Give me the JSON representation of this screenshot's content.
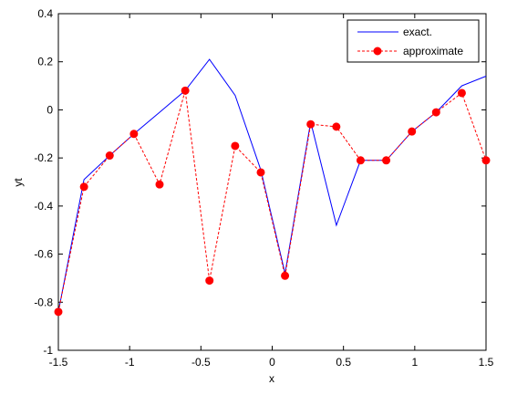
{
  "chart_data": {
    "type": "line",
    "xlabel": "x",
    "ylabel": "yt",
    "xlim": [
      -1.5,
      1.5
    ],
    "ylim": [
      -1,
      0.4
    ],
    "xticks": [
      -1.5,
      -1,
      -0.5,
      0,
      0.5,
      1,
      1.5
    ],
    "xtick_labels": [
      "-1.5",
      "-1",
      "-0.5",
      "0",
      "0.5",
      "1",
      "1.5"
    ],
    "yticks": [
      -1,
      -0.8,
      -0.6,
      -0.4,
      -0.2,
      0,
      0.2,
      0.4
    ],
    "ytick_labels": [
      "-1",
      "-0.8",
      "-0.6",
      "-0.4",
      "-0.2",
      "0",
      "0.2",
      "0.4"
    ],
    "grid": false,
    "legend_position": "top-right",
    "x": [
      -1.5,
      -1.32,
      -1.14,
      -0.97,
      -0.79,
      -0.61,
      -0.44,
      -0.26,
      -0.08,
      0.09,
      0.27,
      0.45,
      0.62,
      0.8,
      0.98,
      1.15,
      1.33,
      1.5
    ],
    "series": [
      {
        "name": "exact.",
        "color": "#0000ff",
        "style": "solid",
        "marker": "none",
        "values": [
          -0.84,
          -0.29,
          -0.19,
          -0.1,
          -0.01,
          0.08,
          0.21,
          0.06,
          -0.25,
          -0.68,
          -0.05,
          -0.48,
          -0.21,
          -0.21,
          -0.09,
          -0.01,
          0.1,
          0.14
        ]
      },
      {
        "name": "approximate",
        "color": "#ff0000",
        "style": "dashed",
        "marker": "circle",
        "values": [
          -0.84,
          -0.32,
          -0.19,
          -0.1,
          -0.31,
          0.08,
          -0.71,
          -0.15,
          -0.26,
          -0.69,
          -0.06,
          -0.07,
          -0.21,
          -0.21,
          -0.09,
          -0.01,
          0.07,
          -0.21
        ]
      }
    ]
  }
}
